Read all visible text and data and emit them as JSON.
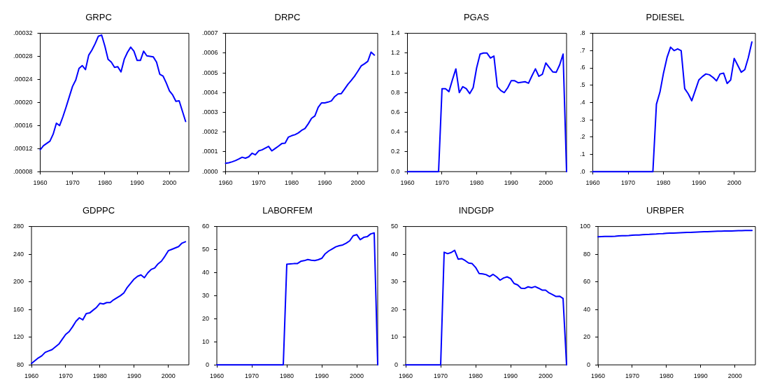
{
  "chart_data": [
    {
      "type": "line",
      "title": "GRPC",
      "color": "#0000ff",
      "xlim": [
        1960,
        2006
      ],
      "xticks": [
        1960,
        1970,
        1980,
        1990,
        2000
      ],
      "ylim": [
        8e-05,
        0.00032
      ],
      "yticks": [
        {
          "value": 8e-05,
          "label": ".00008"
        },
        {
          "value": 0.00012,
          "label": ".00012"
        },
        {
          "value": 0.00016,
          "label": ".00016"
        },
        {
          "value": 0.0002,
          "label": ".00020"
        },
        {
          "value": 0.00024,
          "label": ".00024"
        },
        {
          "value": 0.00028,
          "label": ".00028"
        },
        {
          "value": 0.00032,
          "label": ".00032"
        }
      ],
      "x": [
        1960,
        1961,
        1962,
        1963,
        1964,
        1965,
        1966,
        1967,
        1968,
        1969,
        1970,
        1971,
        1972,
        1973,
        1974,
        1975,
        1976,
        1977,
        1978,
        1979,
        1980,
        1981,
        1982,
        1983,
        1984,
        1985,
        1986,
        1987,
        1988,
        1989,
        1990,
        1991,
        1992,
        1993,
        1994,
        1995,
        1996,
        1997,
        1998,
        1999,
        2000,
        2001,
        2002,
        2003,
        2004,
        2005
      ],
      "values": [
        0.000118,
        0.000125,
        0.000129,
        0.000133,
        0.000145,
        0.000164,
        0.00016,
        0.000175,
        0.000192,
        0.00021,
        0.000228,
        0.000239,
        0.000259,
        0.000264,
        0.000257,
        0.000282,
        0.000291,
        0.000302,
        0.000315,
        0.000317,
        0.000298,
        0.000275,
        0.00027,
        0.000261,
        0.000262,
        0.000253,
        0.000275,
        0.000287,
        0.000296,
        0.000289,
        0.000273,
        0.000273,
        0.000289,
        0.000281,
        0.00028,
        0.000279,
        0.00027,
        0.000249,
        0.000246,
        0.000234,
        0.00022,
        0.000213,
        0.000202,
        0.000203,
        0.000185,
        0.000167
      ]
    },
    {
      "type": "line",
      "title": "DRPC",
      "color": "#0000ff",
      "xlim": [
        1960,
        2006
      ],
      "xticks": [
        1960,
        1970,
        1980,
        1990,
        2000
      ],
      "ylim": [
        0,
        0.0007
      ],
      "yticks": [
        {
          "value": 0,
          "label": ".0000"
        },
        {
          "value": 0.0001,
          "label": ".0001"
        },
        {
          "value": 0.0002,
          "label": ".0002"
        },
        {
          "value": 0.0003,
          "label": ".0003"
        },
        {
          "value": 0.0004,
          "label": ".0004"
        },
        {
          "value": 0.0005,
          "label": ".0005"
        },
        {
          "value": 0.0006,
          "label": ".0006"
        },
        {
          "value": 0.0007,
          "label": ".0007"
        }
      ],
      "x": [
        1960,
        1961,
        1962,
        1963,
        1964,
        1965,
        1966,
        1967,
        1968,
        1969,
        1970,
        1971,
        1972,
        1973,
        1974,
        1975,
        1976,
        1977,
        1978,
        1979,
        1980,
        1981,
        1982,
        1983,
        1984,
        1985,
        1986,
        1987,
        1988,
        1989,
        1990,
        1991,
        1992,
        1993,
        1994,
        1995,
        1996,
        1997,
        1998,
        1999,
        2000,
        2001,
        2002,
        2003,
        2004,
        2005
      ],
      "values": [
        4.2e-05,
        4.5e-05,
        5e-05,
        5.6e-05,
        6.4e-05,
        7.3e-05,
        6.8e-05,
        7.5e-05,
        9.3e-05,
        8.5e-05,
        0.000105,
        0.00011,
        0.000119,
        0.000128,
        0.000105,
        0.000117,
        0.000129,
        0.000142,
        0.000144,
        0.000175,
        0.000182,
        0.000187,
        0.000196,
        0.000209,
        0.000218,
        0.000242,
        0.00027,
        0.000282,
        0.000325,
        0.000348,
        0.000348,
        0.000352,
        0.000358,
        0.00038,
        0.000393,
        0.000395,
        0.000418,
        0.000442,
        0.000462,
        0.000483,
        0.000508,
        0.000535,
        0.000546,
        0.000558,
        0.000605,
        0.00059
      ]
    },
    {
      "type": "line",
      "title": "PGAS",
      "color": "#0000ff",
      "xlim": [
        1960,
        2006
      ],
      "xticks": [
        1960,
        1970,
        1980,
        1990,
        2000
      ],
      "ylim": [
        0,
        1.4
      ],
      "yticks": [
        {
          "value": 0,
          "label": "0.0"
        },
        {
          "value": 0.2,
          "label": "0.2"
        },
        {
          "value": 0.4,
          "label": "0.4"
        },
        {
          "value": 0.6,
          "label": "0.6"
        },
        {
          "value": 0.8,
          "label": "0.8"
        },
        {
          "value": 1,
          "label": "1.0"
        },
        {
          "value": 1.2,
          "label": "1.2"
        },
        {
          "value": 1.4,
          "label": "1.4"
        }
      ],
      "x": [
        1960,
        1961,
        1962,
        1963,
        1964,
        1965,
        1966,
        1967,
        1968,
        1969,
        1970,
        1971,
        1972,
        1973,
        1974,
        1975,
        1976,
        1977,
        1978,
        1979,
        1980,
        1981,
        1982,
        1983,
        1984,
        1985,
        1986,
        1987,
        1988,
        1989,
        1990,
        1991,
        1992,
        1993,
        1994,
        1995,
        1996,
        1997,
        1998,
        1999,
        2000,
        2001,
        2002,
        2003,
        2004,
        2005,
        2006
      ],
      "values": [
        0,
        0,
        0,
        0,
        0,
        0,
        0,
        0,
        0,
        0,
        0.84,
        0.84,
        0.81,
        0.93,
        1.04,
        0.8,
        0.86,
        0.84,
        0.79,
        0.85,
        1.05,
        1.19,
        1.2,
        1.2,
        1.15,
        1.17,
        0.86,
        0.82,
        0.8,
        0.85,
        0.92,
        0.92,
        0.9,
        0.905,
        0.91,
        0.895,
        0.97,
        1.04,
        0.965,
        0.985,
        1.1,
        1.055,
        1.01,
        1.005,
        1.08,
        1.19,
        0
      ]
    },
    {
      "type": "line",
      "title": "PDIESEL",
      "color": "#0000ff",
      "xlim": [
        1960,
        2006
      ],
      "xticks": [
        1960,
        1970,
        1980,
        1990,
        2000
      ],
      "ylim": [
        0,
        0.8
      ],
      "yticks": [
        {
          "value": 0,
          "label": ".0"
        },
        {
          "value": 0.1,
          "label": ".1"
        },
        {
          "value": 0.2,
          "label": ".2"
        },
        {
          "value": 0.3,
          "label": ".3"
        },
        {
          "value": 0.4,
          "label": ".4"
        },
        {
          "value": 0.5,
          "label": ".5"
        },
        {
          "value": 0.6,
          "label": ".6"
        },
        {
          "value": 0.7,
          "label": ".7"
        },
        {
          "value": 0.8,
          "label": ".8"
        }
      ],
      "x": [
        1960,
        1961,
        1962,
        1963,
        1964,
        1965,
        1966,
        1967,
        1968,
        1969,
        1970,
        1971,
        1972,
        1973,
        1974,
        1975,
        1976,
        1977,
        1978,
        1979,
        1980,
        1981,
        1982,
        1983,
        1984,
        1985,
        1986,
        1987,
        1988,
        1989,
        1990,
        1991,
        1992,
        1993,
        1994,
        1995,
        1996,
        1997,
        1998,
        1999,
        2000,
        2001,
        2002,
        2003,
        2004,
        2005
      ],
      "values": [
        0,
        0,
        0,
        0,
        0,
        0,
        0,
        0,
        0,
        0,
        0,
        0,
        0,
        0,
        0,
        0,
        0,
        0,
        0.39,
        0.46,
        0.57,
        0.66,
        0.72,
        0.7,
        0.71,
        0.7,
        0.48,
        0.45,
        0.41,
        0.47,
        0.53,
        0.55,
        0.565,
        0.56,
        0.545,
        0.525,
        0.565,
        0.57,
        0.51,
        0.53,
        0.655,
        0.615,
        0.575,
        0.59,
        0.66,
        0.75
      ]
    },
    {
      "type": "line",
      "title": "GDPPC",
      "color": "#0000ff",
      "xlim": [
        1960,
        2006
      ],
      "xticks": [
        1960,
        1970,
        1980,
        1990,
        2000
      ],
      "ylim": [
        80,
        280
      ],
      "yticks": [
        80,
        120,
        160,
        200,
        240,
        280
      ],
      "x": [
        1960,
        1961,
        1962,
        1963,
        1964,
        1965,
        1966,
        1967,
        1968,
        1969,
        1970,
        1971,
        1972,
        1973,
        1974,
        1975,
        1976,
        1977,
        1978,
        1979,
        1980,
        1981,
        1982,
        1983,
        1984,
        1985,
        1986,
        1987,
        1988,
        1989,
        1990,
        1991,
        1992,
        1993,
        1994,
        1995,
        1996,
        1997,
        1998,
        1999,
        2000,
        2001,
        2002,
        2003,
        2004,
        2005
      ],
      "values": [
        82,
        86,
        90,
        93,
        98,
        100,
        102,
        106,
        110,
        117,
        124,
        128,
        135,
        143,
        148,
        145,
        154,
        155,
        159,
        163,
        169,
        168,
        170,
        170,
        174,
        177,
        180,
        184,
        192,
        198,
        204,
        208,
        210,
        206,
        213,
        218,
        220,
        226,
        230,
        237,
        245,
        247,
        249,
        251,
        256,
        258
      ]
    },
    {
      "type": "line",
      "title": "LABORFEM",
      "color": "#0000ff",
      "xlim": [
        1960,
        2006
      ],
      "xticks": [
        1960,
        1970,
        1980,
        1990,
        2000
      ],
      "ylim": [
        0,
        60
      ],
      "yticks": [
        0,
        10,
        20,
        30,
        40,
        50,
        60
      ],
      "x": [
        1960,
        1961,
        1962,
        1963,
        1964,
        1965,
        1966,
        1967,
        1968,
        1969,
        1970,
        1971,
        1972,
        1973,
        1974,
        1975,
        1976,
        1977,
        1978,
        1979,
        1980,
        1981,
        1982,
        1983,
        1984,
        1985,
        1986,
        1987,
        1988,
        1989,
        1990,
        1991,
        1992,
        1993,
        1994,
        1995,
        1996,
        1997,
        1998,
        1999,
        2000,
        2001,
        2002,
        2003,
        2004,
        2005,
        2006
      ],
      "values": [
        0,
        0,
        0,
        0,
        0,
        0,
        0,
        0,
        0,
        0,
        0,
        0,
        0,
        0,
        0,
        0,
        0,
        0,
        0,
        0,
        43.6,
        43.8,
        43.9,
        43.9,
        44.9,
        45.2,
        45.7,
        45.4,
        45.2,
        45.6,
        46.2,
        48.2,
        49.4,
        50.3,
        51.2,
        51.7,
        52,
        52.8,
        53.8,
        56,
        56.5,
        54.3,
        55.3,
        55.6,
        56.8,
        57.2,
        0
      ]
    },
    {
      "type": "line",
      "title": "INDGDP",
      "color": "#0000ff",
      "xlim": [
        1960,
        2006
      ],
      "xticks": [
        1960,
        1970,
        1980,
        1990,
        2000
      ],
      "ylim": [
        0,
        50
      ],
      "yticks": [
        0,
        10,
        20,
        30,
        40,
        50
      ],
      "x": [
        1960,
        1961,
        1962,
        1963,
        1964,
        1965,
        1966,
        1967,
        1968,
        1969,
        1970,
        1971,
        1972,
        1973,
        1974,
        1975,
        1976,
        1977,
        1978,
        1979,
        1980,
        1981,
        1982,
        1983,
        1984,
        1985,
        1986,
        1987,
        1988,
        1989,
        1990,
        1991,
        1992,
        1993,
        1994,
        1995,
        1996,
        1997,
        1998,
        1999,
        2000,
        2001,
        2002,
        2003,
        2004,
        2005,
        2006
      ],
      "values": [
        0,
        0,
        0,
        0,
        0,
        0,
        0,
        0,
        0,
        0,
        0,
        40.7,
        40.2,
        40.6,
        41.4,
        38.2,
        38.4,
        37.7,
        36.8,
        36.6,
        35.2,
        33,
        32.9,
        32.6,
        31.9,
        32.7,
        31.8,
        30.6,
        31.4,
        31.8,
        31.2,
        29.4,
        28.9,
        27.7,
        27.6,
        28.2,
        27.9,
        28.3,
        27.7,
        27,
        27,
        26,
        25.4,
        24.7,
        24.8,
        24,
        0
      ]
    },
    {
      "type": "line",
      "title": "URBPER",
      "color": "#0000ff",
      "xlim": [
        1960,
        2006
      ],
      "xticks": [
        1960,
        1970,
        1980,
        1990,
        2000
      ],
      "ylim": [
        0,
        100
      ],
      "yticks": [
        0,
        20,
        40,
        60,
        80,
        100
      ],
      "x": [
        1960,
        1961,
        1962,
        1963,
        1964,
        1965,
        1966,
        1967,
        1968,
        1969,
        1970,
        1971,
        1972,
        1973,
        1974,
        1975,
        1976,
        1977,
        1978,
        1979,
        1980,
        1981,
        1982,
        1983,
        1984,
        1985,
        1986,
        1987,
        1988,
        1989,
        1990,
        1991,
        1992,
        1993,
        1994,
        1995,
        1996,
        1997,
        1998,
        1999,
        2000,
        2001,
        2002,
        2003,
        2004,
        2005
      ],
      "values": [
        92.6,
        92.7,
        92.8,
        92.9,
        92.9,
        93,
        93.2,
        93.3,
        93.4,
        93.5,
        93.7,
        93.8,
        93.9,
        94.1,
        94.2,
        94.3,
        94.5,
        94.6,
        94.8,
        94.9,
        95.1,
        95.2,
        95.3,
        95.4,
        95.5,
        95.6,
        95.7,
        95.8,
        95.9,
        96,
        96.1,
        96.2,
        96.3,
        96.4,
        96.5,
        96.6,
        96.6,
        96.7,
        96.8,
        96.8,
        96.9,
        97,
        97,
        97.1,
        97.1,
        97.2
      ]
    }
  ]
}
